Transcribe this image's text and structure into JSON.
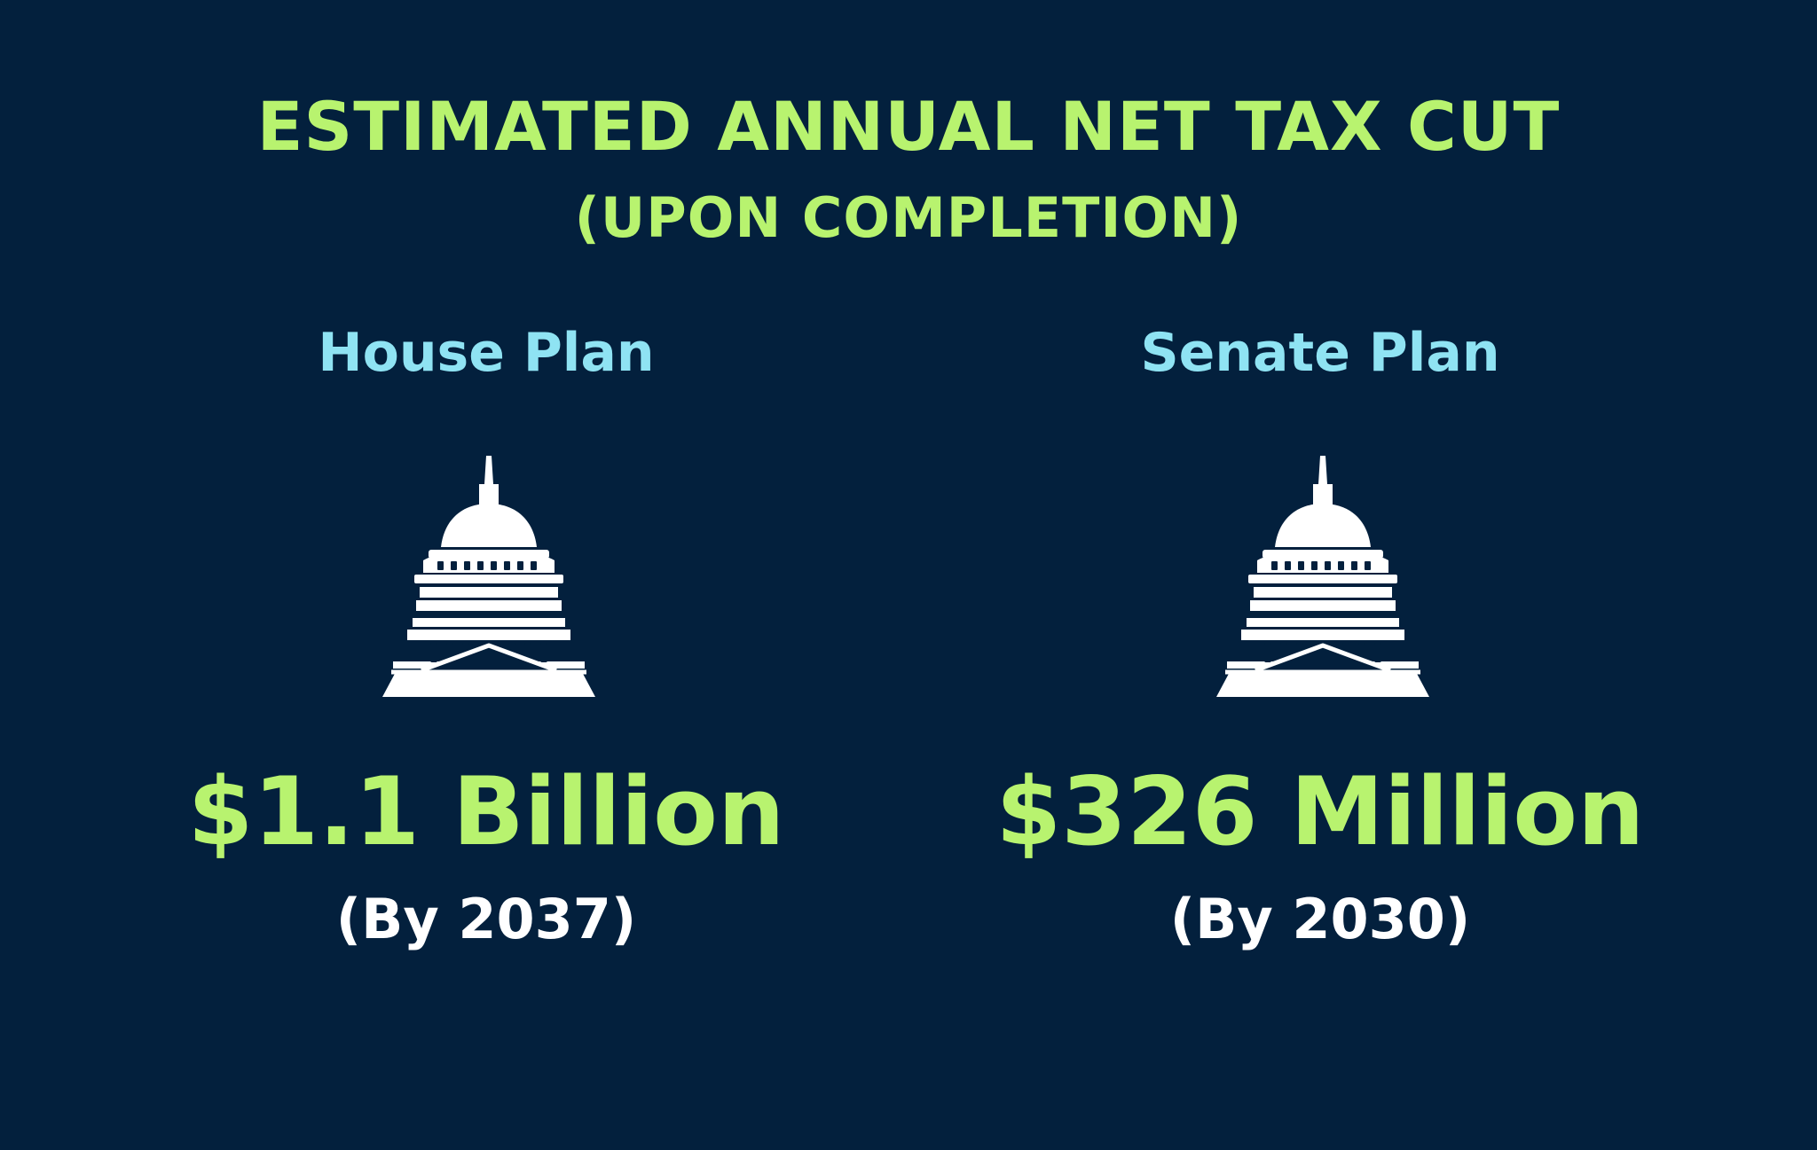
{
  "header": {
    "title": "ESTIMATED ANNUAL NET TAX CUT",
    "subtitle": "(UPON COMPLETION)"
  },
  "plans": [
    {
      "name": "House Plan",
      "amount": "$1.1 Billion",
      "by_year": "(By 2037)",
      "icon": "capitol-building-icon"
    },
    {
      "name": "Senate Plan",
      "amount": "$326 Million",
      "by_year": "(By 2030)",
      "icon": "capitol-building-icon"
    }
  ],
  "colors": {
    "background": "#03203d",
    "title": "#b8f36f",
    "plan_name": "#8fe3f3",
    "amount": "#b8f36f",
    "year": "#ffffff",
    "icon": "#ffffff"
  }
}
